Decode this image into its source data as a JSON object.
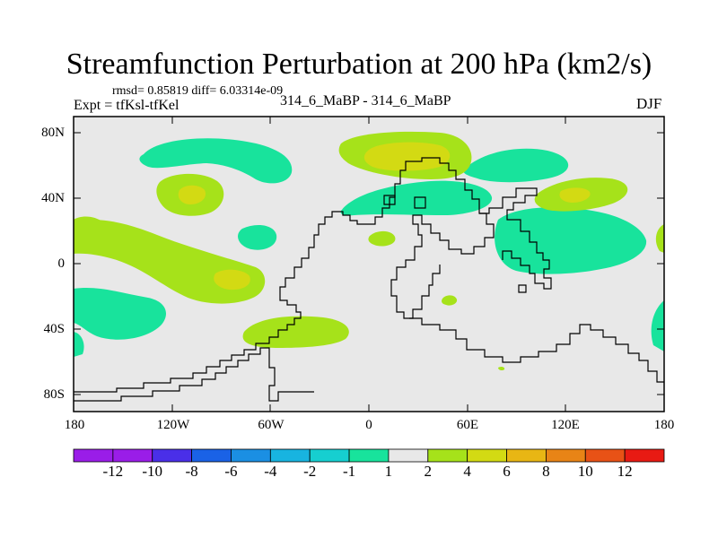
{
  "title": "Streamfunction Perturbation at 200 hPa (km2/s)",
  "stats_line": "rmsd= 0.85819 diff= 6.03314e-09",
  "expt_line": "Expt = tfKsl-tfKel",
  "center_label": "314_6_MaBP - 314_6_MaBP",
  "season": "DJF",
  "y_ticks": [
    "80N",
    "40N",
    "0",
    "40S",
    "80S"
  ],
  "x_ticks": [
    "180",
    "120W",
    "60W",
    "0",
    "60E",
    "120E",
    "180"
  ],
  "colorbar": {
    "labels": [
      "-12",
      "-10",
      "-8",
      "-6",
      "-4",
      "-2",
      "-1",
      "1",
      "2",
      "4",
      "6",
      "8",
      "10",
      "12"
    ],
    "colors": [
      "#9a1de8",
      "#4a2fe8",
      "#1a62e6",
      "#1b8fe3",
      "#18b4e0",
      "#16cfd0",
      "#18e39c",
      "#e8e8e8",
      "#a6e21a",
      "#d3da13",
      "#e8b614",
      "#e88416",
      "#e85216",
      "#e81a13"
    ]
  },
  "colors": {
    "background": "#e8e8e8",
    "neg_1_2": "#18e39c",
    "pos_1_2": "#a6e21a",
    "pos_2_4": "#d3da13",
    "coast": "#000000"
  }
}
